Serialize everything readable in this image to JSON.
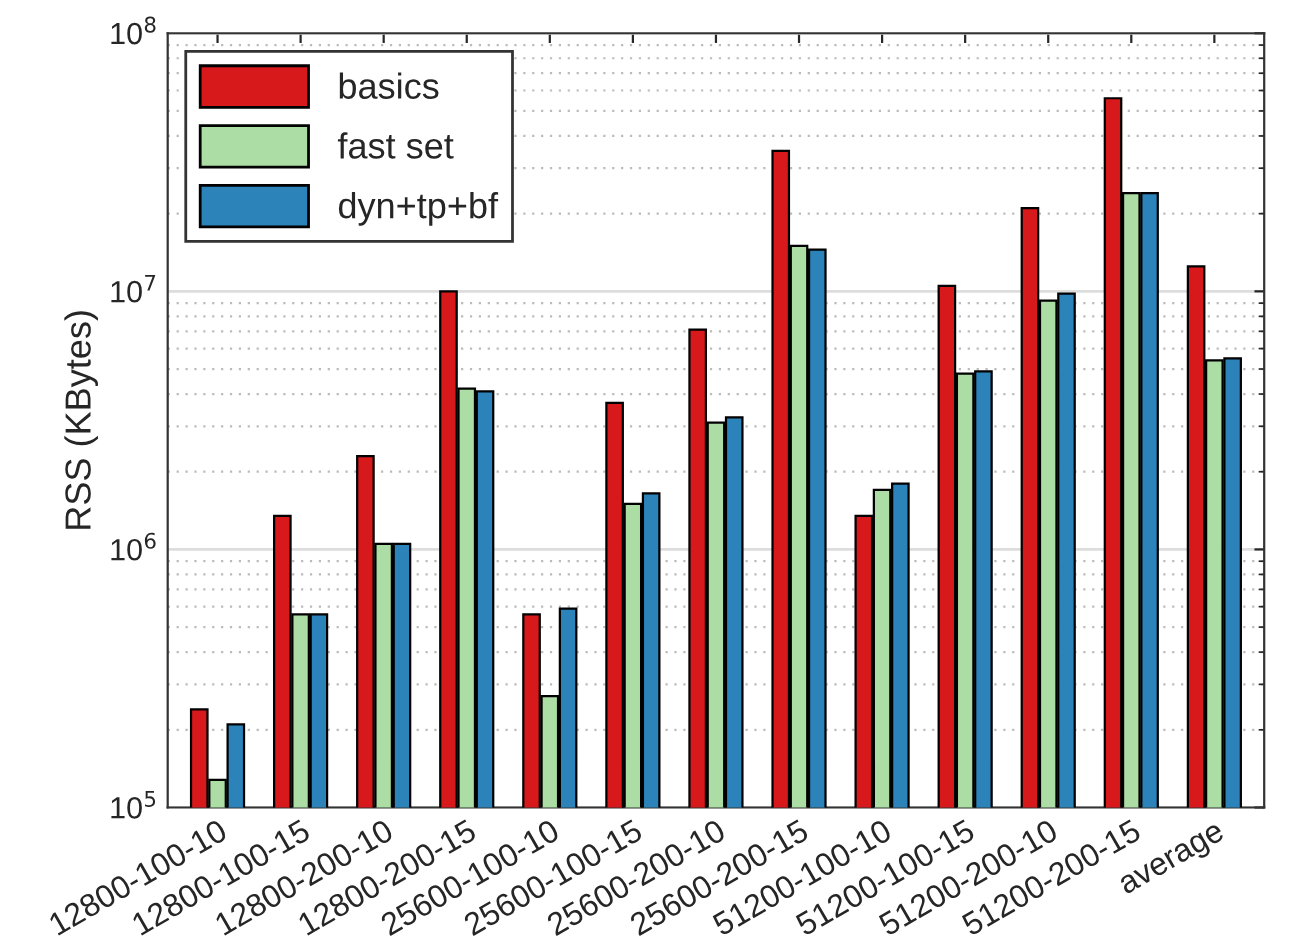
{
  "chart_data": {
    "type": "bar",
    "ylabel": "RSS (KBytes)",
    "log": true,
    "grid": true,
    "legend": "top left",
    "categories": [
      "12800-100-10",
      "12800-100-15",
      "12800-200-10",
      "12800-200-15",
      "25600-100-10",
      "25600-100-15",
      "25600-200-10",
      "25600-200-15",
      "51200-100-10",
      "51200-100-15",
      "51200-200-10",
      "51200-200-15",
      "average"
    ],
    "series": [
      {
        "name": "basics",
        "color": "#d7191c",
        "values": [
          240000,
          1350000,
          2300000,
          10000000,
          560000,
          3700000,
          7100000,
          35000000,
          1350000,
          10500000,
          21000000,
          56000000,
          12500000
        ]
      },
      {
        "name": "fast set",
        "color": "#abdda4",
        "values": [
          128000,
          560000,
          1050000,
          4200000,
          270000,
          1500000,
          3100000,
          15000000,
          1700000,
          4800000,
          9200000,
          24000000,
          5400000
        ]
      },
      {
        "name": "dyn+tp+bf",
        "color": "#2b83ba",
        "values": [
          210000,
          560000,
          1050000,
          4100000,
          590000,
          1650000,
          3250000,
          14500000,
          1800000,
          4900000,
          9800000,
          24000000,
          5500000
        ]
      }
    ],
    "ylim": [
      100000,
      100000000
    ],
    "yticks": [
      {
        "value": 100000,
        "label": "10$^{5}$"
      },
      {
        "value": 1000000,
        "label": "10$^{6}$"
      },
      {
        "value": 10000000,
        "label": "10$^{7}$"
      },
      {
        "value": 100000000,
        "label": "10$^{8}$"
      }
    ]
  }
}
